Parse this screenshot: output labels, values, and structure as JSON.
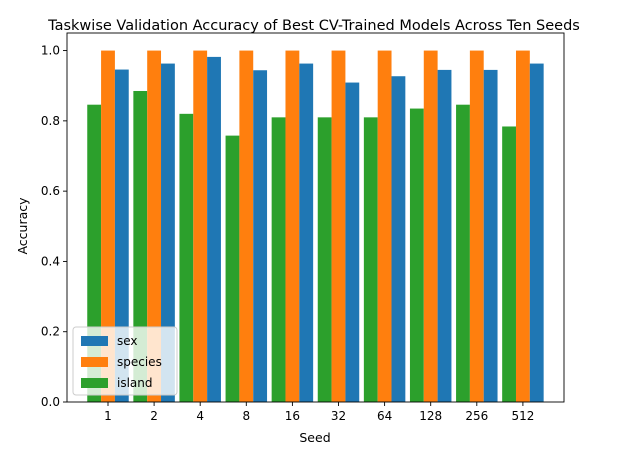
{
  "chart_data": {
    "type": "bar",
    "title": "Taskwise Validation Accuracy of Best CV-Trained Models Across Ten Seeds",
    "xlabel": "Seed",
    "ylabel": "Accuracy",
    "categories": [
      "1",
      "2",
      "4",
      "8",
      "16",
      "32",
      "64",
      "128",
      "256",
      "512"
    ],
    "ylim": [
      0,
      1.05
    ],
    "yticks": [
      "0.0",
      "0.2",
      "0.4",
      "0.6",
      "0.8",
      "1.0"
    ],
    "grid": false,
    "legend_position": "lower-left",
    "series": [
      {
        "name": "sex",
        "color": "#1f77b4",
        "values": [
          0.946,
          0.963,
          0.982,
          0.944,
          0.963,
          0.909,
          0.927,
          0.945,
          0.945,
          0.963
        ]
      },
      {
        "name": "species",
        "color": "#ff7f0e",
        "values": [
          1.0,
          1.0,
          1.0,
          1.0,
          1.0,
          1.0,
          1.0,
          1.0,
          1.0,
          1.0
        ]
      },
      {
        "name": "island",
        "color": "#2ca02c",
        "values": [
          0.846,
          0.885,
          0.82,
          0.758,
          0.81,
          0.81,
          0.81,
          0.835,
          0.846,
          0.784
        ]
      }
    ]
  }
}
